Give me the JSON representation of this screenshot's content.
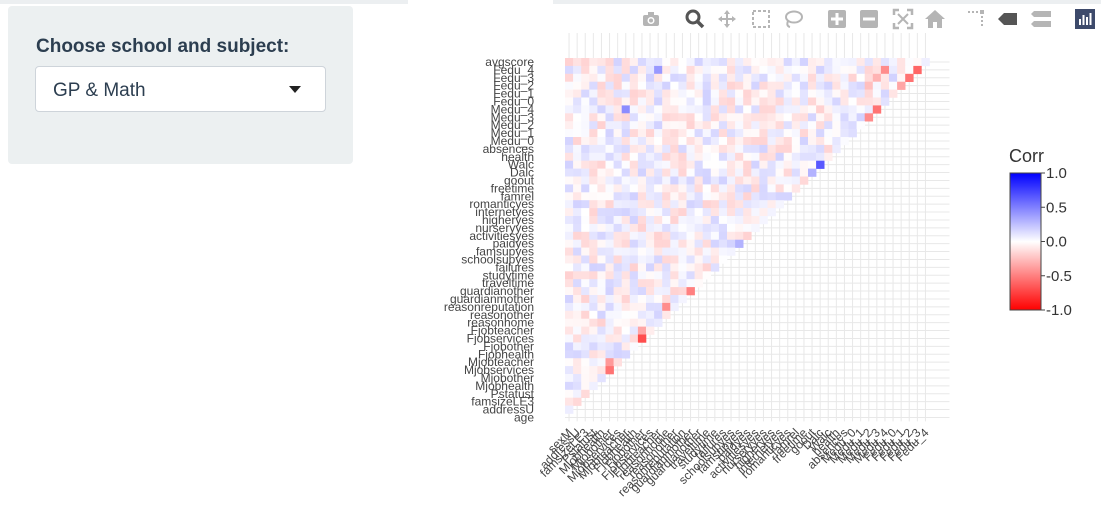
{
  "control": {
    "label": "Choose school and subject:",
    "selected": "GP & Math"
  },
  "modebar": [
    "camera-icon",
    "zoom-icon",
    "pan-icon",
    "box-select-icon",
    "lasso-select-icon",
    "zoom-in-icon",
    "zoom-out-icon",
    "autoscale-icon",
    "reset-axes-icon",
    "spike-lines-icon",
    "hover-closest-icon",
    "hover-compare-icon",
    "plotly-logo-icon"
  ],
  "colors": {
    "negative": "#ff0000",
    "zero": "#ffffff",
    "positive": "#0000ff",
    "grid": "#e8e8e8"
  },
  "chart_data": {
    "type": "heatmap",
    "title": "",
    "xlabel": "",
    "ylabel": "",
    "legend_title": "Corr",
    "zlim": [
      -1,
      1
    ],
    "colorbar_ticks": [
      "1.0",
      "0.5",
      "0.0",
      "-0.5",
      "-1.0"
    ],
    "y_labels": [
      "avgscore",
      "Fedu_4",
      "Fedu_3",
      "Fedu_2",
      "Fedu_1",
      "Fedu_0",
      "Medu_4",
      "Medu_3",
      "Medu_2",
      "Medu_1",
      "Medu_0",
      "absences",
      "health",
      "Walc",
      "Dalc",
      "goout",
      "freetime",
      "famrel",
      "romanticyes",
      "internetyes",
      "higheryes",
      "nurseryyes",
      "activitiesyes",
      "paidyes",
      "famsupyes",
      "schoolsupyes",
      "failures",
      "studytime",
      "traveltime",
      "guardianother",
      "guardianmother",
      "reasonreputation",
      "reasonother",
      "reasonhome",
      "Fjobteacher",
      "Fjobservices",
      "Fjobother",
      "Fjobhealth",
      "Mjobteacher",
      "Mjobservices",
      "Mjobother",
      "Mjobhealth",
      "Pstatust",
      "famsizeLE3",
      "addressU",
      "age"
    ],
    "x_labels": [
      "sexM",
      "addressU",
      "famsizeLE3",
      "Pstatust",
      "Mjobhealth",
      "Mjobother",
      "Mjobservices",
      "Mjobteacher",
      "Fjobhealth",
      "Fjobother",
      "Fjobservices",
      "Fjobteacher",
      "reasonhome",
      "reasonother",
      "reasonreputation",
      "guardianmother",
      "guardianother",
      "traveltime",
      "studytime",
      "failures",
      "schoolsupyes",
      "famsupyes",
      "paidyes",
      "activitiesyes",
      "nurseryyes",
      "higheryes",
      "internetyes",
      "romanticyes",
      "famrel",
      "freetime",
      "goout",
      "Dalc",
      "Walc",
      "health",
      "absences",
      "Medu_0",
      "Medu_1",
      "Medu_2",
      "Medu_3",
      "Medu_4",
      "Fedu_0",
      "Fedu_1",
      "Fedu_2",
      "Fedu_3",
      "Fedu_4"
    ],
    "notable_cells": [
      {
        "y": "Walc",
        "x": "Dalc",
        "value": 0.65
      },
      {
        "y": "Dalc",
        "x": "goout",
        "value": 0.3
      },
      {
        "y": "Fedu_4",
        "x": "Medu_4",
        "value": -0.45
      },
      {
        "y": "Fedu_3",
        "x": "Medu_3",
        "value": -0.3
      },
      {
        "y": "Fedu_2",
        "x": "Medu_2",
        "value": -0.25
      },
      {
        "y": "Medu_4",
        "x": "Medu_3",
        "value": -0.55
      },
      {
        "y": "Medu_3",
        "x": "Medu_2",
        "value": -0.45
      },
      {
        "y": "Fedu_4",
        "x": "Fedu_3",
        "value": -0.6
      },
      {
        "y": "Fedu_3",
        "x": "Fedu_2",
        "value": -0.55
      },
      {
        "y": "Fedu_2",
        "x": "Fedu_1",
        "value": -0.35
      },
      {
        "y": "Fjobservices",
        "x": "Fjobother",
        "value": -0.7
      },
      {
        "y": "Fjobteacher",
        "x": "Fjobother",
        "value": -0.35
      },
      {
        "y": "Mjobservices",
        "x": "Mjobother",
        "value": -0.55
      },
      {
        "y": "Mjobteacher",
        "x": "Mjobother",
        "value": -0.4
      },
      {
        "y": "reasonreputation",
        "x": "reasonhome",
        "value": -0.45
      },
      {
        "y": "guardianother",
        "x": "guardianmother",
        "value": -0.5
      },
      {
        "y": "paidyes",
        "x": "famsupyes",
        "value": 0.3
      },
      {
        "y": "Medu_4",
        "x": "Mjobteacher",
        "value": 0.45
      },
      {
        "y": "Fedu_4",
        "x": "Fjobteacher",
        "value": 0.4
      }
    ]
  }
}
